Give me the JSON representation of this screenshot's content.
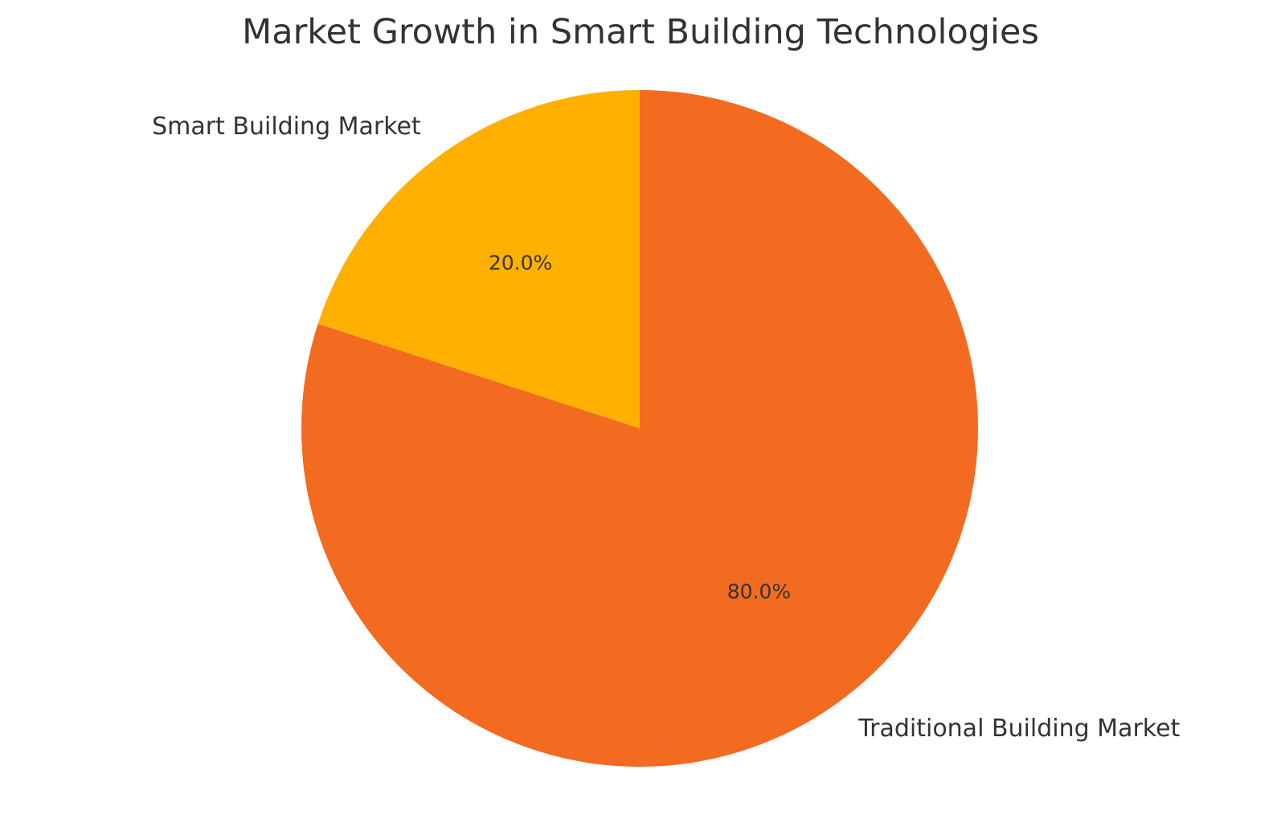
{
  "chart_data": {
    "type": "pie",
    "title": "Market Growth in Smart Building Technologies",
    "start_angle_deg": 90,
    "direction": "counterclockwise",
    "slices": [
      {
        "label": "Smart Building Market",
        "value": 20.0,
        "percent_label": "20.0%",
        "color": "#FFB000"
      },
      {
        "label": "Traditional Building Market",
        "value": 80.0,
        "percent_label": "80.0%",
        "color": "#F26B21"
      }
    ]
  }
}
